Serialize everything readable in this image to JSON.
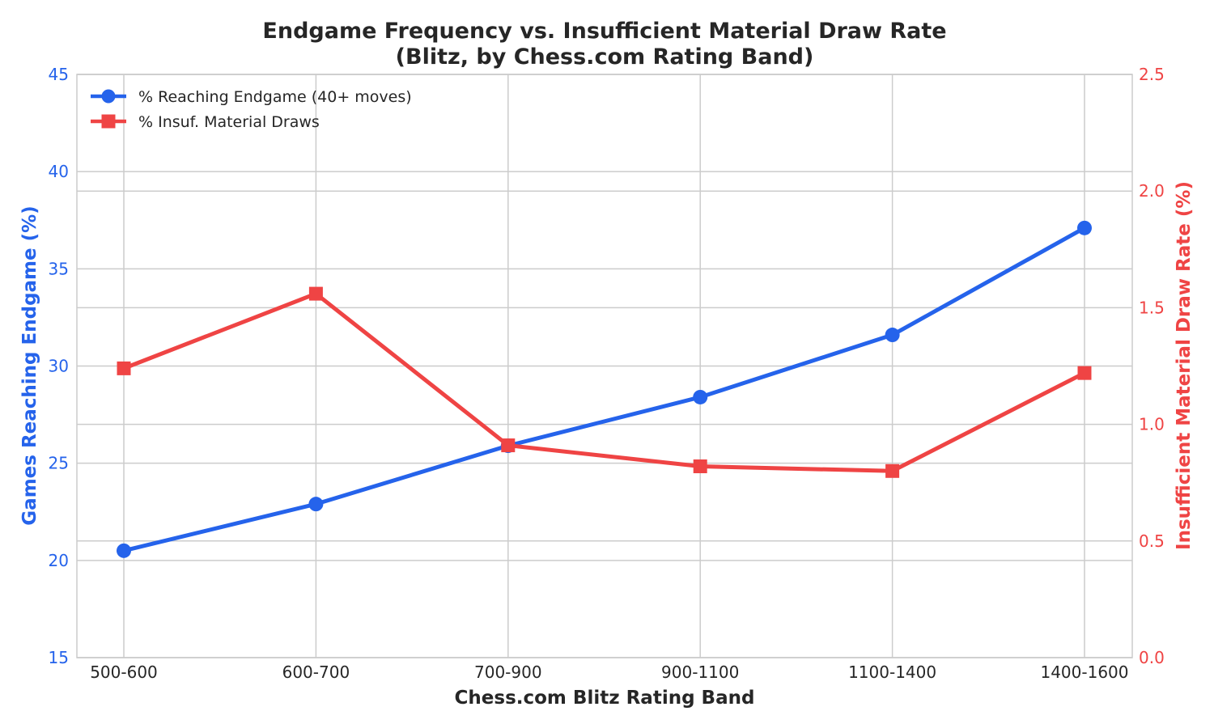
{
  "chart_data": {
    "type": "line",
    "title_line1": "Endgame Frequency vs. Insufficient Material Draw Rate",
    "title_line2": "(Blitz, by Chess.com Rating Band)",
    "xlabel": "Chess.com Blitz Rating Band",
    "ylabel_left": "Games Reaching Endgame (%)",
    "ylabel_right": "Insufficient Material Draw Rate (%)",
    "categories": [
      "500-600",
      "600-700",
      "700-900",
      "900-1100",
      "1100-1400",
      "1400-1600"
    ],
    "ylim_left": [
      15,
      45
    ],
    "ylim_right": [
      0.0,
      2.5
    ],
    "yticks_left": [
      "15",
      "20",
      "25",
      "30",
      "35",
      "40",
      "45"
    ],
    "yticks_right": [
      "0.0",
      "0.5",
      "1.0",
      "1.5",
      "2.0",
      "2.5"
    ],
    "grid": true,
    "legend_position": "top-left",
    "series": [
      {
        "name": "% Reaching Endgame (40+ moves)",
        "axis": "left",
        "marker": "circle",
        "color": "#2563eb",
        "values": [
          20.5,
          22.9,
          25.9,
          28.4,
          31.6,
          37.1
        ]
      },
      {
        "name": "% Insuf. Material Draws",
        "axis": "right",
        "marker": "square",
        "color": "#ef4444",
        "values": [
          1.24,
          1.56,
          0.91,
          0.82,
          0.8,
          1.22
        ]
      }
    ]
  }
}
